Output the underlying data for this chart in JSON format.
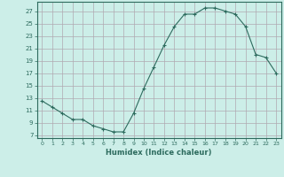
{
  "x": [
    0,
    1,
    2,
    3,
    4,
    5,
    6,
    7,
    8,
    9,
    10,
    11,
    12,
    13,
    14,
    15,
    16,
    17,
    18,
    19,
    20,
    21,
    22,
    23
  ],
  "y": [
    12.5,
    11.5,
    10.5,
    9.5,
    9.5,
    8.5,
    8.0,
    7.5,
    7.5,
    10.5,
    14.5,
    18.0,
    21.5,
    24.5,
    26.5,
    26.5,
    27.5,
    27.5,
    27.0,
    26.5,
    24.5,
    20.0,
    19.5,
    17.0
  ],
  "xlabel": "Humidex (Indice chaleur)",
  "xlim": [
    -0.5,
    23.5
  ],
  "ylim": [
    6.5,
    28.5
  ],
  "yticks": [
    7,
    9,
    11,
    13,
    15,
    17,
    19,
    21,
    23,
    25,
    27
  ],
  "xticks": [
    0,
    1,
    2,
    3,
    4,
    5,
    6,
    7,
    8,
    9,
    10,
    11,
    12,
    13,
    14,
    15,
    16,
    17,
    18,
    19,
    20,
    21,
    22,
    23
  ],
  "line_color": "#2d6b5e",
  "marker": "+",
  "bg_color": "#cceee8",
  "grid_color": "#b0a8b0",
  "axis_color": "#2d6b5e",
  "tick_color": "#2d6b5e",
  "xlabel_color": "#2d6b5e"
}
